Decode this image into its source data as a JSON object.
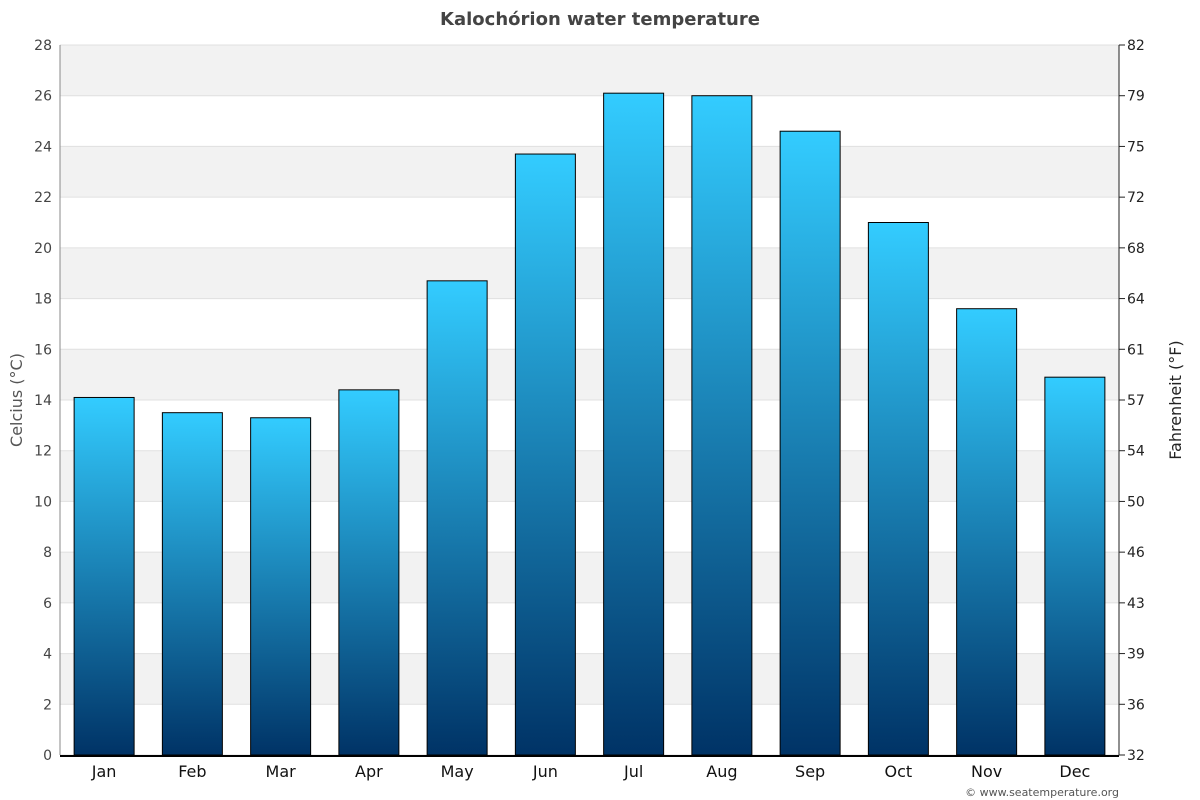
{
  "chart_data": {
    "type": "bar",
    "title": "Kalochórion water temperature",
    "categories": [
      "Jan",
      "Feb",
      "Mar",
      "Apr",
      "May",
      "Jun",
      "Jul",
      "Aug",
      "Sep",
      "Oct",
      "Nov",
      "Dec"
    ],
    "values": [
      14.1,
      13.5,
      13.3,
      14.4,
      18.7,
      23.7,
      26.1,
      26.0,
      24.6,
      21.0,
      17.6,
      14.9
    ],
    "ylabel": "Celcius (°C)",
    "ylabel_right": "Fahrenheit (°F)",
    "ylim": [
      0,
      28
    ],
    "yticks": [
      0,
      2,
      4,
      6,
      8,
      10,
      12,
      14,
      16,
      18,
      20,
      22,
      24,
      26,
      28
    ],
    "yticks_right": [
      32,
      36,
      39,
      43,
      46,
      50,
      54,
      57,
      61,
      64,
      68,
      72,
      75,
      79,
      82
    ],
    "grid": true,
    "colors": {
      "bar_top": "#33ccff",
      "bar_bottom": "#003366",
      "band": "#f2f2f2"
    }
  },
  "credit": "© www.seatemperature.org"
}
